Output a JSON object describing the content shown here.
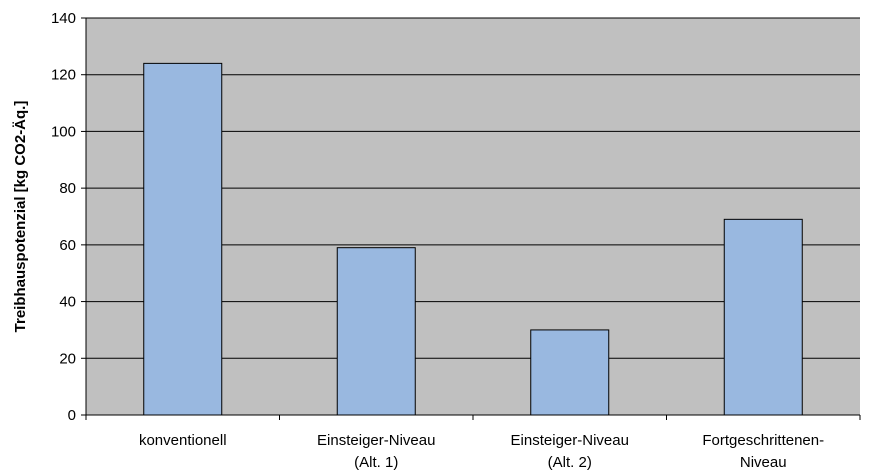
{
  "chart_data": {
    "type": "bar",
    "categories": [
      [
        "konventionell"
      ],
      [
        "Einsteiger-Niveau",
        "(Alt. 1)"
      ],
      [
        "Einsteiger-Niveau",
        "(Alt. 2)"
      ],
      [
        "Fortgeschrittenen-",
        "Niveau"
      ]
    ],
    "values": [
      124,
      59,
      30,
      69
    ],
    "title": "",
    "xlabel": "",
    "ylabel": "Treibhauspotenzial [kg CO2-Äq.]",
    "ylim": [
      0,
      140
    ],
    "yticks": [
      0,
      20,
      40,
      60,
      80,
      100,
      120,
      140
    ],
    "grid": true,
    "legend": "none",
    "colors": {
      "plot_background": "#c0c0c0",
      "bar_fill": "#99b8e0",
      "bar_stroke": "#000000",
      "gridline": "#000000",
      "axis": "#000000"
    }
  }
}
